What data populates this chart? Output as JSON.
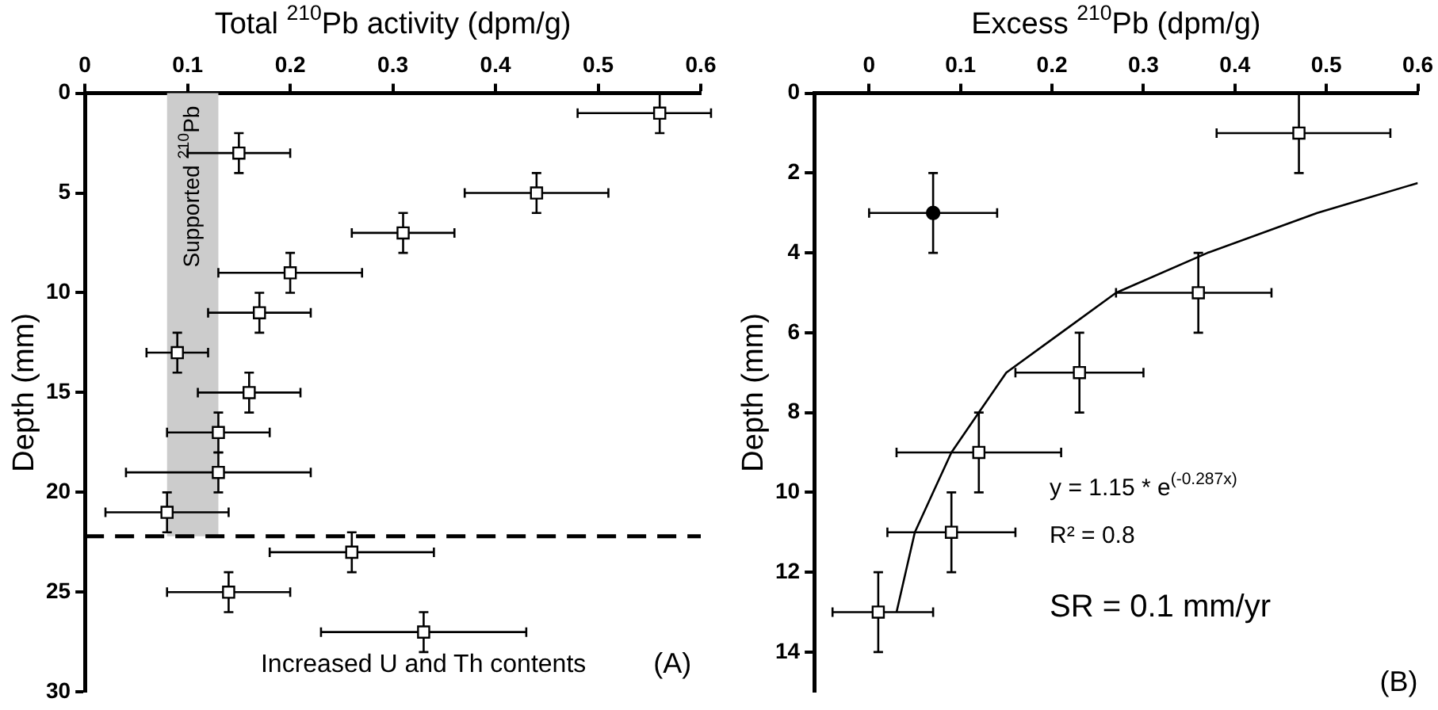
{
  "chart_data": [
    {
      "type": "scatter",
      "xlabel": "Total $^{210}$Pb activity (dpm/g)",
      "ylabel": "Depth (mm)",
      "xlim": [
        0,
        0.6
      ],
      "xticks": [
        0,
        0.1,
        0.2,
        0.3,
        0.4,
        0.5,
        0.6
      ],
      "ylim": [
        30,
        0
      ],
      "yticks": [
        0,
        5,
        10,
        15,
        20,
        25,
        30
      ],
      "grid": false,
      "legend": false,
      "series": [
        {
          "color": "#000000",
          "marker": "square",
          "x": [
            0.56,
            0.15,
            0.44,
            0.31,
            0.2,
            0.17,
            0.09,
            0.16,
            0.13,
            0.13,
            0.08,
            0.26,
            0.14,
            0.33
          ],
          "values": [
            1,
            3,
            5,
            7,
            9,
            11,
            13,
            15,
            17,
            19,
            21,
            23,
            25,
            27
          ],
          "errors": [
            1,
            1,
            1,
            1,
            1,
            1,
            1,
            1,
            1,
            1,
            1,
            1,
            1,
            1
          ],
          "xerrors": [
            [
              0.48,
              0.61
            ],
            [
              0.1,
              0.2
            ],
            [
              0.37,
              0.51
            ],
            [
              0.26,
              0.36
            ],
            [
              0.13,
              0.27
            ],
            [
              0.12,
              0.22
            ],
            [
              0.06,
              0.12
            ],
            [
              0.11,
              0.21
            ],
            [
              0.08,
              0.18
            ],
            [
              0.04,
              0.22
            ],
            [
              0.02,
              0.14
            ],
            [
              0.18,
              0.34
            ],
            [
              0.08,
              0.2
            ],
            [
              0.23,
              0.43
            ]
          ]
        }
      ],
      "bands": [
        {
          "axis": "x",
          "from": 0.08,
          "to": 0.13,
          "label": "Supported $^{210}$Pb",
          "color": "#cccccc"
        }
      ],
      "ref_lines": [
        {
          "axis": "y",
          "value": 22.2,
          "color": "#000000",
          "line_style": "dashed"
        }
      ],
      "annotations": [
        "Increased U and Th contents",
        "(A)"
      ]
    },
    {
      "type": "scatter",
      "xlabel": "Excess $^{210}$Pb (dpm/g)",
      "ylabel": "Depth (mm)",
      "xlim": [
        -0.06,
        0.6
      ],
      "xticks": [
        0,
        0.1,
        0.2,
        0.3,
        0.4,
        0.5,
        0.6
      ],
      "ylim": [
        15,
        0
      ],
      "yticks": [
        0,
        2,
        4,
        6,
        8,
        10,
        12,
        14
      ],
      "grid": false,
      "legend": false,
      "series": [
        {
          "color": "#000000",
          "marker": "square",
          "x": [
            0.47,
            0.36,
            0.23,
            0.12,
            0.09,
            0.01
          ],
          "values": [
            1,
            5,
            7,
            9,
            11,
            13
          ],
          "errors": [
            1,
            1,
            1,
            1,
            1,
            1
          ],
          "xerrors": [
            [
              0.38,
              0.57
            ],
            [
              0.27,
              0.44
            ],
            [
              0.16,
              0.3
            ],
            [
              0.03,
              0.21
            ],
            [
              0.02,
              0.16
            ],
            [
              -0.04,
              0.07
            ]
          ]
        },
        {
          "color": "#000000",
          "marker": "circle",
          "x": [
            0.07
          ],
          "values": [
            3
          ],
          "errors": [
            1
          ],
          "xerrors": [
            [
              0,
              0.14
            ]
          ]
        },
        {
          "type": "line",
          "color": "#000000",
          "marker": "none",
          "x": [
            0.03,
            0.04,
            0.05,
            0.07,
            0.09,
            0.12,
            0.15,
            0.21,
            0.27,
            0.37,
            0.49,
            0.6
          ],
          "values": [
            13,
            12,
            11,
            10,
            9,
            8,
            7,
            6,
            5,
            4,
            3,
            2.25
          ]
        }
      ],
      "annotations": [
        "y = 1.15 * e$^{(-0.287x)}$",
        "R² = 0.8",
        "SR = 0.1 mm/yr",
        "(B)"
      ]
    }
  ]
}
